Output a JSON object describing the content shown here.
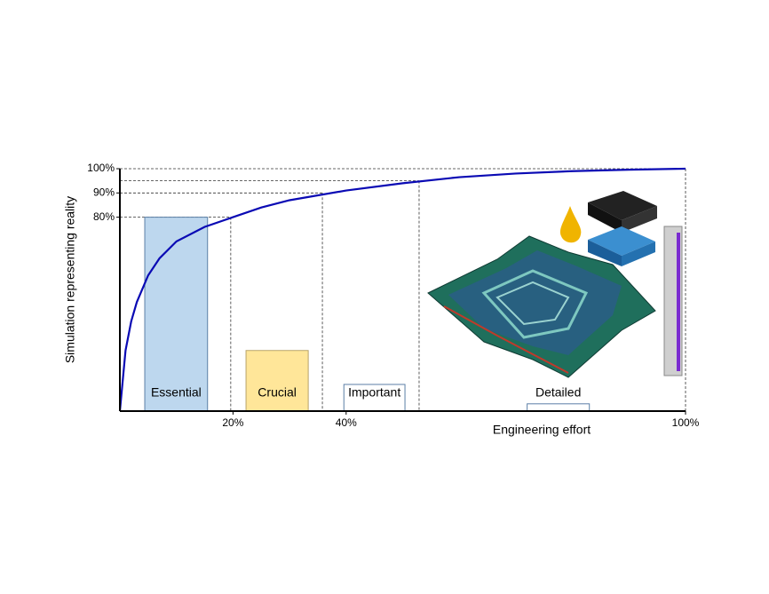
{
  "chart_data": {
    "type": "concept",
    "y_label": "Simulation representing reality",
    "x_label": "Engineering effort",
    "xlim": [
      0,
      100
    ],
    "ylim": [
      0,
      100
    ],
    "xticks": [
      {
        "value": 20,
        "label": "20%"
      },
      {
        "value": 40,
        "label": "40%"
      },
      {
        "value": 100,
        "label": "100%"
      }
    ],
    "yticks": [
      {
        "value": 80,
        "label": "80%"
      },
      {
        "value": 90,
        "label": "90%"
      },
      {
        "value": 100,
        "label": "100%"
      }
    ],
    "curve": {
      "color": "#0a0ab4",
      "x": [
        0,
        1,
        2,
        3,
        5,
        7,
        10,
        15,
        20,
        25,
        30,
        40,
        50,
        60,
        70,
        80,
        90,
        100
      ],
      "y": [
        0,
        25,
        37,
        45,
        56,
        63,
        70,
        76,
        80,
        84,
        87,
        91,
        94,
        96.5,
        98,
        99,
        99.6,
        100
      ]
    },
    "guides": [
      {
        "x": 19.6,
        "y": 80
      },
      {
        "x": 35.8,
        "y": 90
      },
      {
        "x": 52.9,
        "y": 95
      },
      {
        "x": 100,
        "y": 100
      }
    ],
    "categories": [
      "Essential",
      "Crucial",
      "Important",
      "Detailed"
    ],
    "values": [
      80,
      25,
      11,
      3
    ],
    "bar_x": [
      [
        4.4,
        15.5
      ],
      [
        22.3,
        33.3
      ],
      [
        39.6,
        50.4
      ],
      [
        72,
        83
      ]
    ],
    "fills": [
      "#bdd7ee",
      "#ffe699",
      "#ffffff",
      "#ffffff"
    ],
    "strokes": [
      "#5b7fa6",
      "#b8a36a",
      "#5b7fa6",
      "#5b7fa6"
    ]
  }
}
